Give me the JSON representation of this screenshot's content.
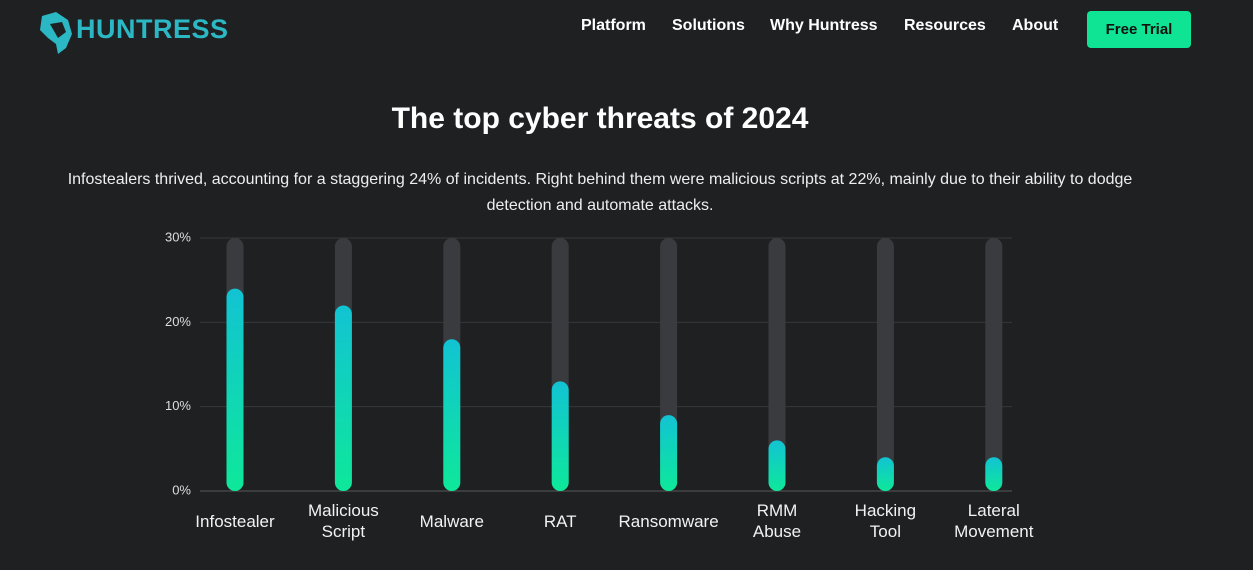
{
  "header": {
    "logo": "HUNTRESS",
    "nav": [
      "Platform",
      "Solutions",
      "Why Huntress",
      "Resources",
      "About"
    ],
    "cta": "Free Trial"
  },
  "chart_data": {
    "type": "bar",
    "title": "The top cyber threats of 2024",
    "subtitle": "Infostealers thrived, accounting for a staggering 24% of incidents. Right behind them were malicious scripts at 22%, mainly due to their ability to dodge detection and automate attacks.",
    "categories": [
      "Infostealer",
      "Malicious Script",
      "Malware",
      "RAT",
      "Ransomware",
      "RMM Abuse",
      "Hacking Tool",
      "Lateral Movement"
    ],
    "values": [
      24,
      22,
      18,
      13,
      9,
      6,
      4,
      4
    ],
    "color_top": "#12c3d3",
    "color_bottom": "#0ee89a",
    "track_color": "#3a3b3e",
    "ylim": [
      0,
      30
    ],
    "yticks": [
      {
        "value": 0,
        "label": "0%"
      },
      {
        "value": 10,
        "label": "10%"
      },
      {
        "value": 20,
        "label": "20%"
      },
      {
        "value": 30,
        "label": "30%"
      }
    ],
    "grid": true
  }
}
